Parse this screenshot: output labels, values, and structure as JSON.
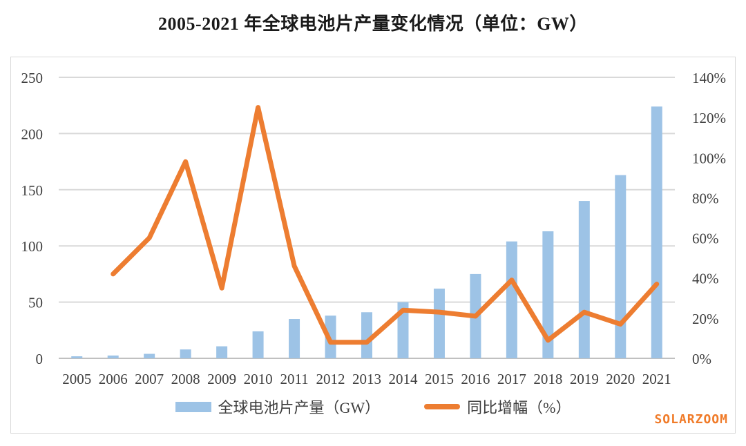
{
  "title": "2005-2021 年全球电池片产量变化情况（单位：GW）",
  "watermark": "SOLARZOOM",
  "colors": {
    "bar": "#9DC3E6",
    "line": "#ED7D31",
    "grid": "#D9D9D9",
    "baseline": "#C0C0C0",
    "frame": "#D9D9D9",
    "axis_text": "#404040",
    "title_text": "#1A1A1A",
    "watermark_text": "#F07B29"
  },
  "legend": {
    "items": [
      {
        "label": "全球电池片产量（GW）",
        "marker": "bar"
      },
      {
        "label": "同比增幅（%）",
        "marker": "line"
      }
    ]
  },
  "chart_data": {
    "type": "bar+line",
    "title": "2005-2021 年全球电池片产量变化情况（单位：GW）",
    "categories": [
      "2005",
      "2006",
      "2007",
      "2008",
      "2009",
      "2010",
      "2011",
      "2012",
      "2013",
      "2014",
      "2015",
      "2016",
      "2017",
      "2018",
      "2019",
      "2020",
      "2021"
    ],
    "series": [
      {
        "name": "全球电池片产量（GW）",
        "type": "bar",
        "axis": "left",
        "color": "#9DC3E6",
        "values": [
          1.8,
          2.5,
          4,
          7.9,
          10.7,
          24,
          35,
          38,
          41,
          50,
          62,
          75,
          104,
          113,
          140,
          163,
          224
        ]
      },
      {
        "name": "同比增幅（%）",
        "type": "line",
        "axis": "right",
        "color": "#ED7D31",
        "values": [
          null,
          42,
          60,
          98,
          35,
          125,
          46,
          8,
          8,
          24,
          23,
          21,
          39,
          9,
          23,
          17,
          37
        ]
      }
    ],
    "left_axis": {
      "min": 0,
      "max": 250,
      "step": 50,
      "ticks": [
        "0",
        "50",
        "100",
        "150",
        "200",
        "250"
      ]
    },
    "right_axis": {
      "min": 0,
      "max": 140,
      "step": 20,
      "ticks": [
        "0%",
        "20%",
        "40%",
        "60%",
        "80%",
        "100%",
        "120%",
        "140%"
      ]
    },
    "grid": true,
    "legend_position": "bottom"
  }
}
